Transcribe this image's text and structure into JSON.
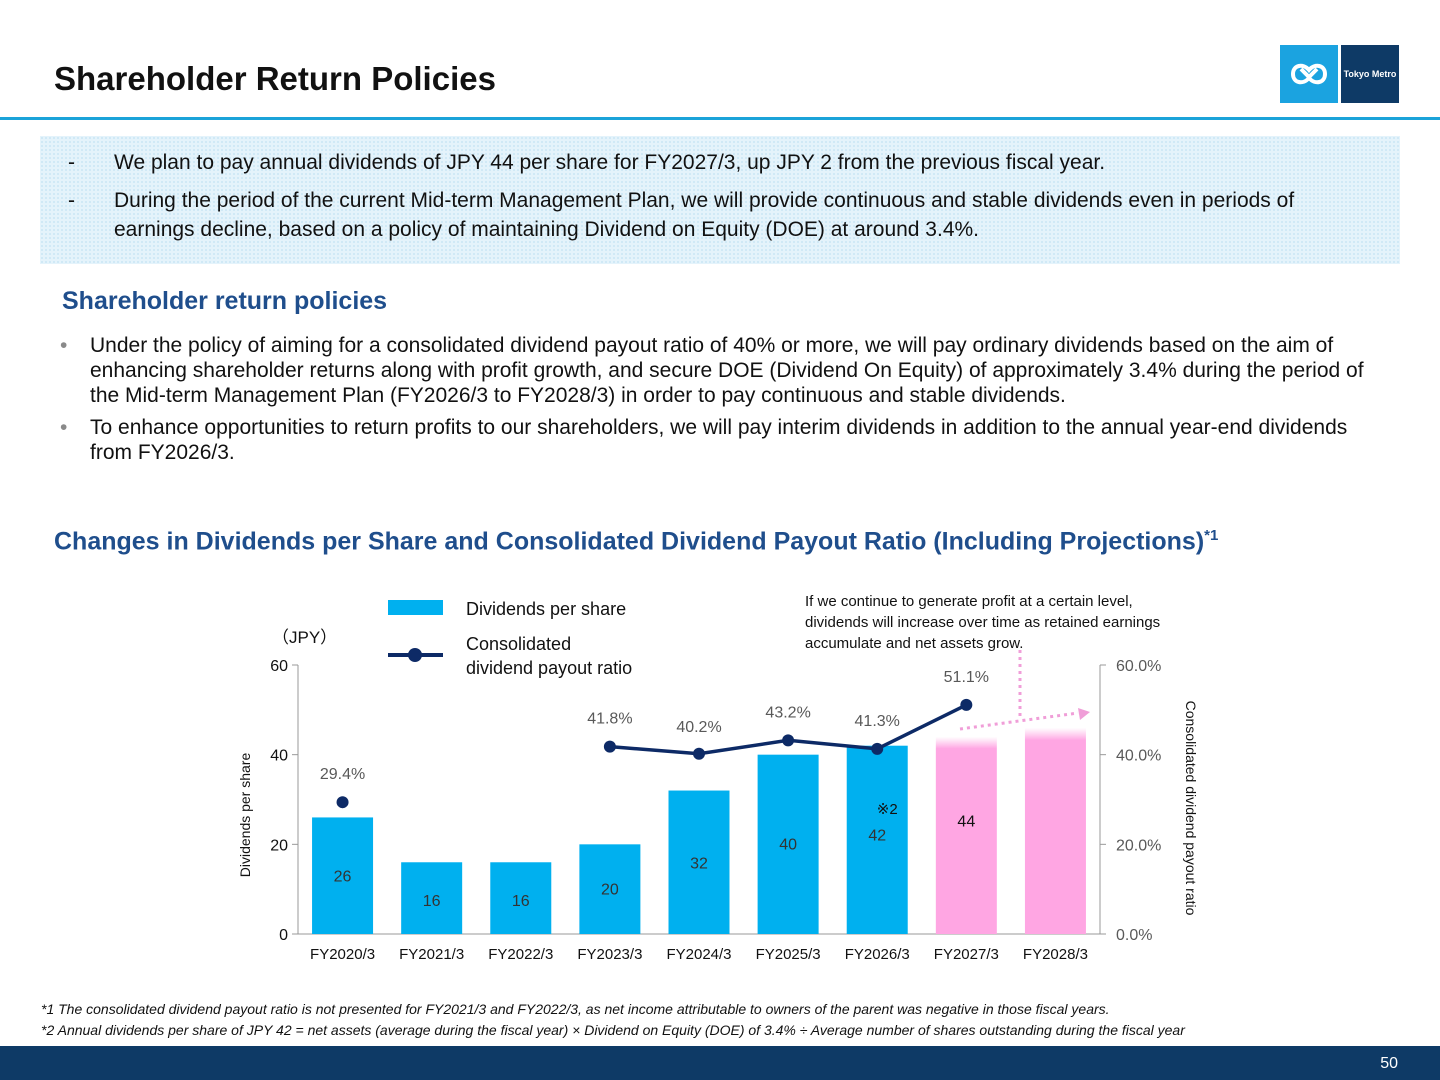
{
  "header": {
    "title": "Shareholder Return Policies",
    "logo_text": "Tokyo Metro"
  },
  "summary": {
    "items": [
      {
        "marker": "-",
        "text": "We plan to pay annual dividends of JPY 44 per share for FY2027/3, up JPY 2 from the previous fiscal year."
      },
      {
        "marker": "-",
        "text": "During the period of the current Mid-term Management Plan, we will provide continuous and stable dividends even in periods of earnings decline, based on a policy of maintaining Dividend on Equity (DOE) at around 3.4%."
      }
    ]
  },
  "policies": {
    "title": "Shareholder return policies",
    "items": [
      {
        "marker": "•",
        "text": "Under the policy of aiming for a consolidated dividend payout ratio of 40% or more, we will pay ordinary dividends based on the aim of enhancing shareholder returns along with profit growth, and secure DOE (Dividend On Equity) of approximately 3.4% during the period of the Mid-term Management Plan (FY2026/3 to FY2028/3) in order to pay continuous and stable dividends."
      },
      {
        "marker": "•",
        "text": "To enhance opportunities to return profits to our shareholders, we will pay interim dividends in addition to the annual year-end dividends from FY2026/3."
      }
    ]
  },
  "chart_section": {
    "title": "Changes in Dividends per Share and Consolidated Dividend Payout Ratio (Including Projections)",
    "title_sup": "*1"
  },
  "chart_data": {
    "type": "bar",
    "categories": [
      "FY2020/3",
      "FY2021/3",
      "FY2022/3",
      "FY2023/3",
      "FY2024/3",
      "FY2025/3",
      "FY2026/3",
      "FY2027/3",
      "FY2028/3"
    ],
    "series": [
      {
        "name": "Dividends per share",
        "type": "bar",
        "axis": "left",
        "values": [
          26,
          16,
          16,
          20,
          32,
          40,
          42,
          44,
          46
        ],
        "labels": [
          "26",
          "16",
          "16",
          "20",
          "32",
          "40",
          "42",
          "44",
          ""
        ],
        "projected_categories": [
          "FY2027/3",
          "FY2028/3"
        ]
      },
      {
        "name": "Consolidated\ndividend payout ratio",
        "type": "line",
        "axis": "right",
        "values": [
          29.4,
          null,
          null,
          41.8,
          40.2,
          43.2,
          41.3,
          51.1,
          null
        ],
        "labels": [
          "29.4%",
          "",
          "",
          "41.8%",
          "40.2%",
          "43.2%",
          "41.3%",
          "51.1%",
          ""
        ]
      }
    ],
    "unit_label": "（JPY）",
    "ylabel": "Dividends per share",
    "ylabel_right": "Consolidated dividend payout ratio",
    "ylim": [
      0,
      60
    ],
    "yticks": [
      "0",
      "20",
      "40",
      "60"
    ],
    "ylim_right": [
      0,
      60
    ],
    "yticks_right": [
      "0.0%",
      "20.0%",
      "40.0%",
      "60.0%"
    ],
    "legend_position": "top",
    "annotation": "If we continue to generate profit at a certain level, dividends will increase over time as retained earnings accumulate and net assets grow.",
    "note_marker": "※2",
    "colors": {
      "bar": "#00b0ef",
      "bar_projection": "#ffa6e3",
      "line": "#0d2a66",
      "arrow": "#f09ed8",
      "axis": "#999999"
    }
  },
  "footnotes": [
    "*1 The consolidated dividend payout ratio is not presented for FY2021/3 and FY2022/3, as net income attributable to owners of the parent was negative in those fiscal years.",
    "*2 Annual dividends per share of JPY 42 = net assets (average during the fiscal year) × Dividend on Equity (DOE) of 3.4% ÷ Average number of shares outstanding during the fiscal year"
  ],
  "page_number": "50"
}
